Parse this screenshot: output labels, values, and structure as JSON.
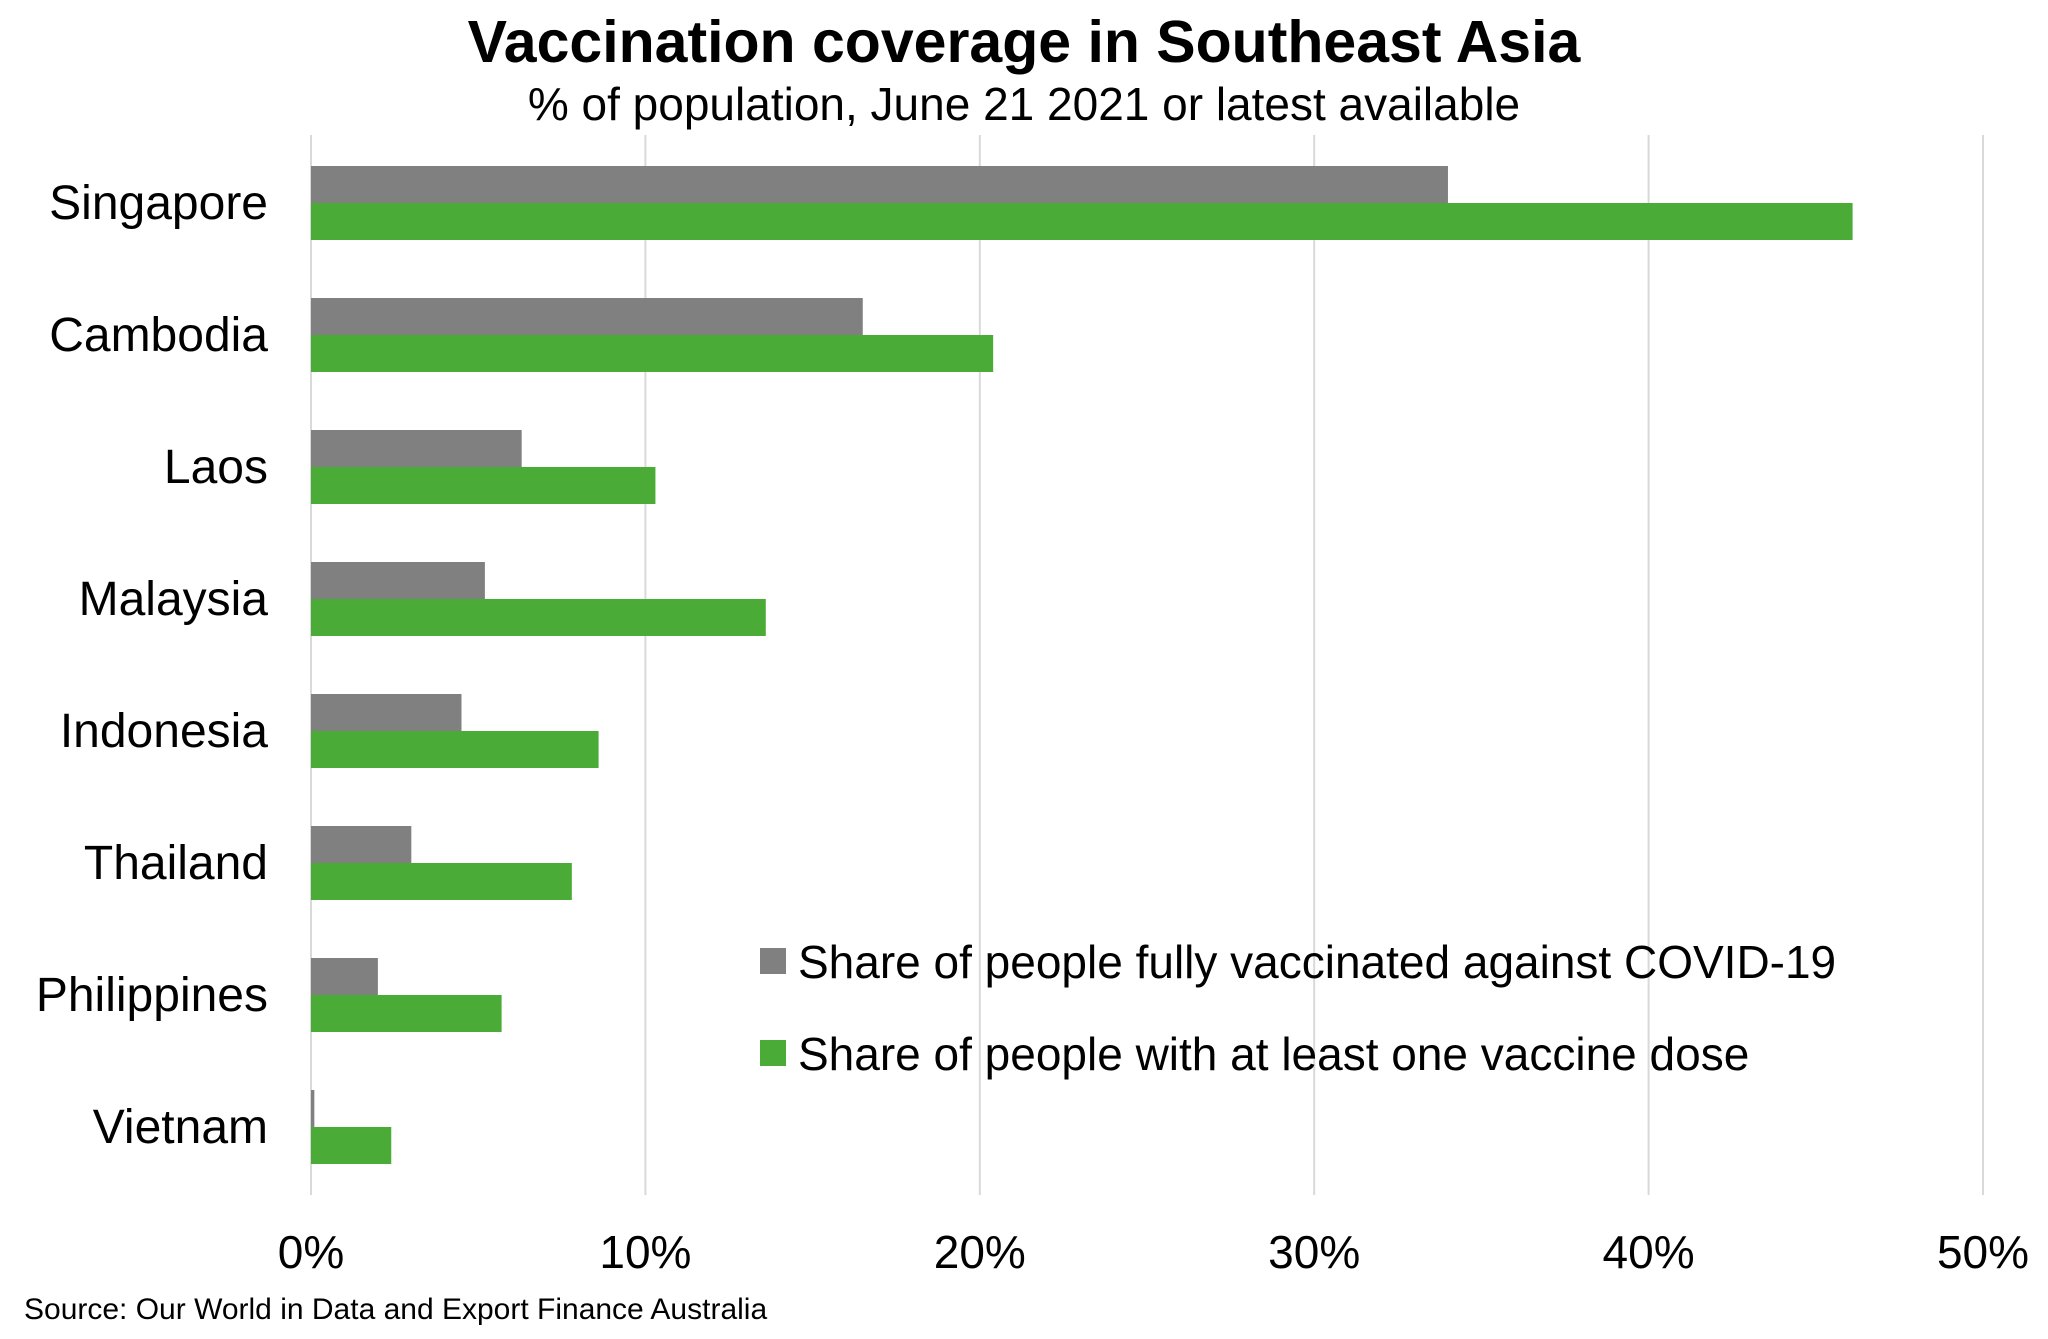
{
  "chart_data": {
    "type": "bar",
    "orientation": "horizontal",
    "title": "Vaccination coverage in Southeast Asia",
    "subtitle": "% of population, June 21 2021 or latest available",
    "categories": [
      "Singapore",
      "Cambodia",
      "Laos",
      "Malaysia",
      "Indonesia",
      "Thailand",
      "Philippines",
      "Vietnam"
    ],
    "series": [
      {
        "name": "Share of people fully vaccinated against COVID-19",
        "color": "#808080",
        "values": [
          34.0,
          16.5,
          6.3,
          5.2,
          4.5,
          3.0,
          2.0,
          0.1
        ]
      },
      {
        "name": "Share of people with at least one vaccine dose",
        "color": "#4aab37",
        "values": [
          46.1,
          20.4,
          10.3,
          13.6,
          8.6,
          7.8,
          5.7,
          2.4
        ]
      }
    ],
    "xlim": [
      0,
      50
    ],
    "xticks": [
      "0%",
      "10%",
      "20%",
      "30%",
      "40%",
      "50%"
    ],
    "grid": true,
    "legend_position": "bottom-right",
    "source": "Source: Our World in Data and Export Finance  Australia"
  }
}
